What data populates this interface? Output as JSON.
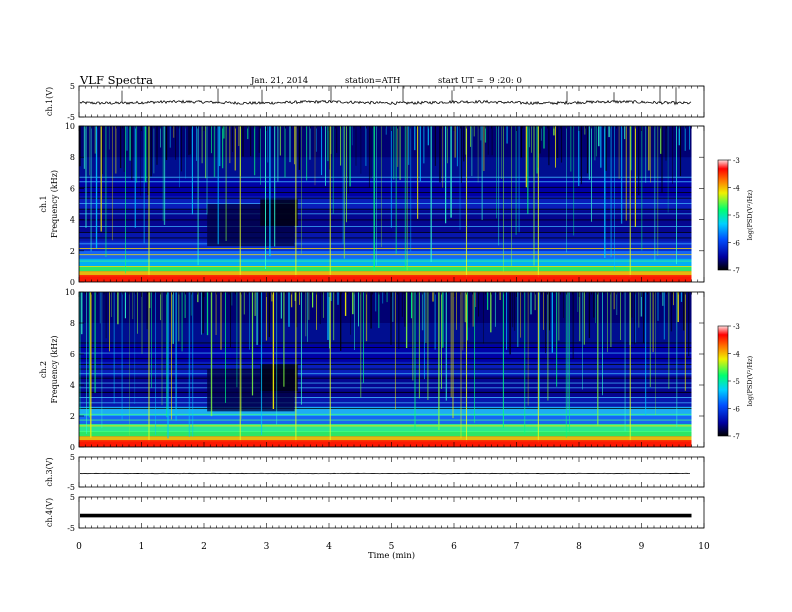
{
  "header": {
    "title": "VLF Spectra",
    "date": "Jan. 21, 2014",
    "station": "station=ATH",
    "start_time": "start UT =  9 :20: 0"
  },
  "colors": {
    "spectrogram_background": "#000080",
    "trace": "#000000",
    "colormap": [
      "#000000",
      "#1010e0",
      "#00c8ff",
      "#00ff80",
      "#f0f000",
      "#ff8000",
      "#ff0000",
      "#ffd0d0"
    ]
  },
  "chart_data": [
    {
      "type": "line",
      "panel": "ch1-waveform",
      "ylabel": "ch.1(V)",
      "ylim": [
        -5,
        5
      ],
      "yticks": [
        "5",
        "-5"
      ],
      "xlim": [
        0,
        10
      ],
      "series": [
        {
          "values_note": "noisy waveform around -0.3 V with sparse spikes"
        }
      ]
    },
    {
      "type": "heatmap",
      "panel": "ch1-spectrogram",
      "ylabel": "ch.1\nFrequency (kHz)",
      "ylim": [
        0,
        10
      ],
      "yticks": [
        "0",
        "2",
        "4",
        "6",
        "8",
        "10"
      ],
      "xlim": [
        0,
        9.8
      ],
      "colorbar": {
        "label": "log(PSD(V²/Hz)",
        "range": [
          -7,
          -3
        ],
        "ticks": [
          "-3",
          "-4",
          "-5",
          "-6",
          "-7"
        ]
      }
    },
    {
      "type": "heatmap",
      "panel": "ch2-spectrogram",
      "ylabel": "ch.2\nFrequency (kHz)",
      "ylim": [
        0,
        10
      ],
      "yticks": [
        "0",
        "2",
        "4",
        "6",
        "8",
        "10"
      ],
      "xlim": [
        0,
        9.8
      ],
      "colorbar": {
        "label": "log(PSD(V²/Hz)",
        "range": [
          -7,
          -3
        ],
        "ticks": [
          "-3",
          "-4",
          "-5",
          "-6",
          "-7"
        ]
      }
    },
    {
      "type": "line",
      "panel": "ch3-waveform",
      "ylabel": "ch.3(V)",
      "ylim": [
        -5,
        5
      ],
      "yticks": [
        "5",
        "-5"
      ],
      "series": [
        {
          "values_note": "flat around -0.5 V"
        }
      ]
    },
    {
      "type": "line",
      "panel": "ch4-waveform",
      "ylabel": "ch.4(V)",
      "ylim": [
        -5,
        5
      ],
      "yticks": [
        "5",
        "-5"
      ],
      "series": [
        {
          "values_note": "thick flat trace around -1 V"
        }
      ]
    }
  ],
  "xaxis": {
    "label": "Time (min)",
    "ticks": [
      "0",
      "1",
      "2",
      "3",
      "4",
      "5",
      "6",
      "7",
      "8",
      "9",
      "10"
    ]
  }
}
